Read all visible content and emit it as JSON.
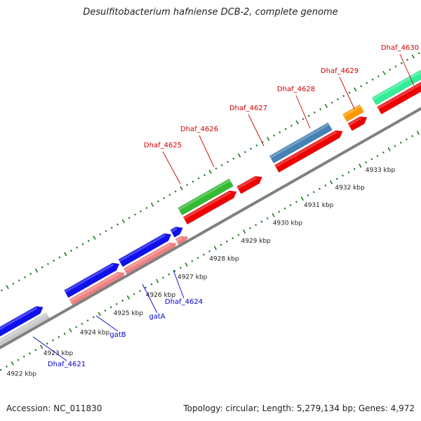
{
  "title": "Desulfitobacterium hafniense DCB-2, complete genome",
  "footer": {
    "accession": "Accession: NC_011830",
    "summary": "Topology: circular; Length: 5,279,134 bp; Genes: 4,972"
  },
  "colors": {
    "background": "#ffffff",
    "backbone": "#808080",
    "tick": "#1f7a1f",
    "label_above": "#cc0000",
    "label_below": "#0000cc"
  },
  "scale_ticks": [
    "4922 kbp",
    "4923 kbp",
    "4924 kbp",
    "4925 kbp",
    "4926 kbp",
    "4927 kbp",
    "4928 kbp",
    "4929 kbp",
    "4930 kbp",
    "4931 kbp",
    "4932 kbp",
    "4933 kbp"
  ],
  "features": [
    {
      "lane": "fwd_gene",
      "color": "#1010ee",
      "start": -1,
      "end": 105,
      "arrow": true
    },
    {
      "lane": "fwd_cds",
      "color": "#c8c8c8",
      "start": -1,
      "end": 105,
      "arrow": false
    },
    {
      "lane": "fwd_gene",
      "color": "#1010ee",
      "start": 143,
      "end": 230,
      "arrow": true
    },
    {
      "lane": "fwd_gene",
      "color": "#1010ee",
      "start": 232,
      "end": 315,
      "arrow": true
    },
    {
      "lane": "fwd_gene",
      "color": "#1010ee",
      "start": 317,
      "end": 334,
      "arrow": true
    },
    {
      "lane": "fwd_cds",
      "color": "#f08080",
      "start": 143,
      "end": 230,
      "arrow": true
    },
    {
      "lane": "fwd_cds",
      "color": "#f08080",
      "start": 232,
      "end": 315,
      "arrow": true
    },
    {
      "lane": "fwd_cds",
      "color": "#f08080",
      "start": 317,
      "end": 334,
      "arrow": true
    },
    {
      "lane": "rev_gene",
      "color": "#33bb33",
      "start": 342,
      "end": 426,
      "arrow": false
    },
    {
      "lane": "rev_gene",
      "color": "#4682b4",
      "start": 492,
      "end": 588,
      "arrow": false
    },
    {
      "lane": "rev_gene",
      "color": "#ff9900",
      "start": 612,
      "end": 640,
      "arrow": false
    },
    {
      "lane": "rev_gene",
      "color": "#33ee99",
      "start": 660,
      "end": 770,
      "arrow": false
    },
    {
      "lane": "rev_gene",
      "color": "#33ee99",
      "start": 772,
      "end": 880,
      "arrow": false
    },
    {
      "lane": "rev_cds",
      "color": "#ee0000",
      "start": 342,
      "end": 426,
      "arrow": true
    },
    {
      "lane": "rev_cds",
      "color": "#ee0000",
      "start": 430,
      "end": 468,
      "arrow": true
    },
    {
      "lane": "rev_cds",
      "color": "#ee0000",
      "start": 492,
      "end": 600,
      "arrow": true
    },
    {
      "lane": "rev_cds",
      "color": "#ee0000",
      "start": 612,
      "end": 640,
      "arrow": true
    },
    {
      "lane": "rev_cds",
      "color": "#ee0000",
      "start": 660,
      "end": 770,
      "arrow": true
    },
    {
      "lane": "rev_cds",
      "color": "#ee0000",
      "start": 772,
      "end": 880,
      "arrow": true
    }
  ],
  "labels": [
    {
      "text": "Dhaf_4625",
      "side": "above"
    },
    {
      "text": "Dhaf_4626",
      "side": "above"
    },
    {
      "text": "Dhaf_4627",
      "side": "above"
    },
    {
      "text": "Dhaf_4628",
      "side": "above"
    },
    {
      "text": "Dhaf_4629",
      "side": "above"
    },
    {
      "text": "Dhaf_4630",
      "side": "above"
    },
    {
      "text": "Dhaf_4621",
      "side": "below"
    },
    {
      "text": "gatB",
      "side": "below"
    },
    {
      "text": "gatA",
      "side": "below"
    },
    {
      "text": "Dhaf_4624",
      "side": "below"
    }
  ]
}
